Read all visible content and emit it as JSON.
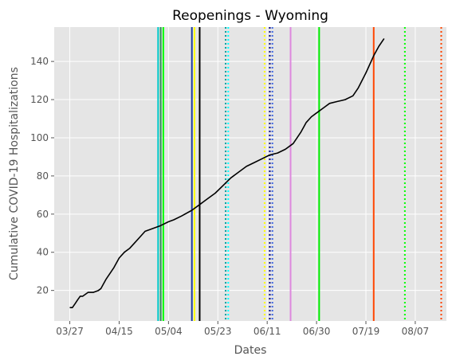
{
  "chart_data": {
    "type": "line",
    "title": "Reopenings - Wyoming",
    "xlabel": "Dates",
    "ylabel": "Cumulative COVID-19 Hospitalizations",
    "year": 2020,
    "x_ticks": [
      "03/27",
      "04/15",
      "05/04",
      "05/23",
      "06/11",
      "06/30",
      "07/19",
      "08/07"
    ],
    "y_ticks": [
      20,
      40,
      60,
      80,
      100,
      120,
      140
    ],
    "xlim": [
      "2020-03-21",
      "2020-08-19"
    ],
    "ylim": [
      4,
      158
    ],
    "grid": true,
    "background": "#e5e5e5",
    "series": [
      {
        "color": "#000000",
        "points": [
          [
            "2020-03-27",
            11
          ],
          [
            "2020-03-28",
            11
          ],
          [
            "2020-03-29",
            13
          ],
          [
            "2020-03-30",
            15
          ],
          [
            "2020-03-31",
            17
          ],
          [
            "2020-04-01",
            17
          ],
          [
            "2020-04-02",
            18
          ],
          [
            "2020-04-03",
            19
          ],
          [
            "2020-04-05",
            19
          ],
          [
            "2020-04-07",
            20
          ],
          [
            "2020-04-08",
            21
          ],
          [
            "2020-04-10",
            26
          ],
          [
            "2020-04-13",
            32
          ],
          [
            "2020-04-15",
            37
          ],
          [
            "2020-04-17",
            40
          ],
          [
            "2020-04-19",
            42
          ],
          [
            "2020-04-21",
            45
          ],
          [
            "2020-04-23",
            48
          ],
          [
            "2020-04-25",
            51
          ],
          [
            "2020-04-27",
            52
          ],
          [
            "2020-04-29",
            53
          ],
          [
            "2020-05-01",
            54
          ],
          [
            "2020-05-04",
            56
          ],
          [
            "2020-05-06",
            57
          ],
          [
            "2020-05-09",
            59
          ],
          [
            "2020-05-13",
            62
          ],
          [
            "2020-05-16",
            65
          ],
          [
            "2020-05-19",
            68
          ],
          [
            "2020-05-22",
            71
          ],
          [
            "2020-05-25",
            75
          ],
          [
            "2020-05-28",
            79
          ],
          [
            "2020-05-31",
            82
          ],
          [
            "2020-06-03",
            85
          ],
          [
            "2020-06-06",
            87
          ],
          [
            "2020-06-09",
            89
          ],
          [
            "2020-06-12",
            91
          ],
          [
            "2020-06-15",
            92
          ],
          [
            "2020-06-18",
            94
          ],
          [
            "2020-06-21",
            97
          ],
          [
            "2020-06-24",
            103
          ],
          [
            "2020-06-26",
            108
          ],
          [
            "2020-06-28",
            111
          ],
          [
            "2020-06-30",
            113
          ],
          [
            "2020-07-03",
            116
          ],
          [
            "2020-07-05",
            118
          ],
          [
            "2020-07-08",
            119
          ],
          [
            "2020-07-11",
            120
          ],
          [
            "2020-07-14",
            122
          ],
          [
            "2020-07-16",
            126
          ],
          [
            "2020-07-19",
            134
          ],
          [
            "2020-07-22",
            143
          ],
          [
            "2020-07-24",
            148
          ],
          [
            "2020-07-26",
            152
          ]
        ]
      }
    ],
    "vlines": [
      {
        "date": "2020-04-30",
        "color": "#00c8c8",
        "style": "solid"
      },
      {
        "date": "2020-05-01",
        "color": "#2e8b57",
        "style": "solid"
      },
      {
        "date": "2020-05-02",
        "color": "#00ff00",
        "style": "solid"
      },
      {
        "date": "2020-05-13",
        "color": "#1f3b9b",
        "style": "solid"
      },
      {
        "date": "2020-05-14",
        "color": "#ffff00",
        "style": "solid"
      },
      {
        "date": "2020-05-16",
        "color": "#000000",
        "style": "solid"
      },
      {
        "date": "2020-05-26",
        "color": "#00a0a0",
        "style": "dotted"
      },
      {
        "date": "2020-05-27",
        "color": "#00ffff",
        "style": "dotted"
      },
      {
        "date": "2020-06-10",
        "color": "#ffff00",
        "style": "dotted"
      },
      {
        "date": "2020-06-12",
        "color": "#000080",
        "style": "dotted"
      },
      {
        "date": "2020-06-13",
        "color": "#4169e1",
        "style": "dotted"
      },
      {
        "date": "2020-06-20",
        "color": "#dd88dd",
        "style": "solid"
      },
      {
        "date": "2020-07-01",
        "color": "#00ee00",
        "style": "solid"
      },
      {
        "date": "2020-07-22",
        "color": "#ff4500",
        "style": "solid"
      },
      {
        "date": "2020-08-03",
        "color": "#00ff00",
        "style": "dotted"
      },
      {
        "date": "2020-08-17",
        "color": "#ff4500",
        "style": "dotted"
      }
    ]
  }
}
